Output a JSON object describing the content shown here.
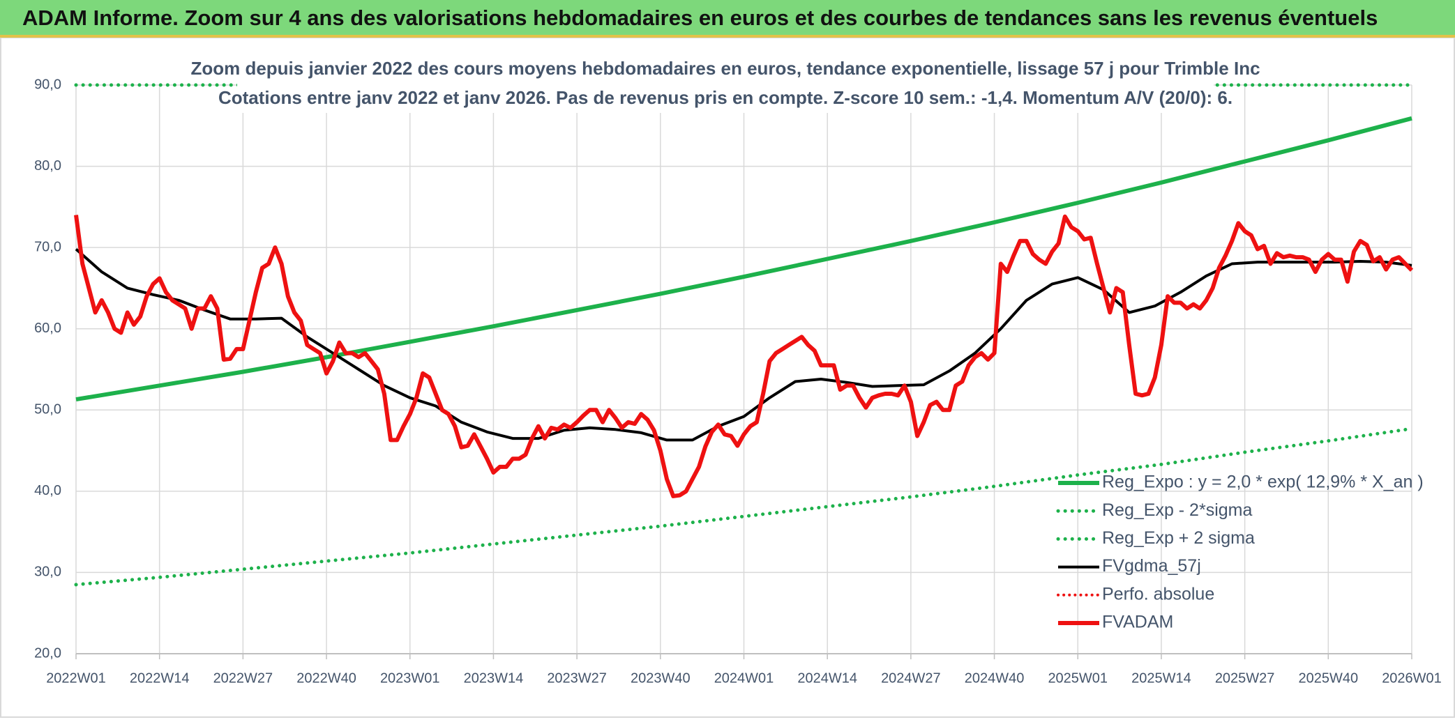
{
  "header": {
    "title": "ADAM Informe. Zoom sur 4 ans des valorisations hebdomadaires en euros et des courbes de tendances sans les revenus éventuels"
  },
  "chart_data": {
    "type": "line",
    "title": [
      "Zoom depuis janvier 2022 des cours moyens hebdomadaires en euros, tendance exponentielle, lissage 57 j pour Trimble Inc",
      "Cotations entre janv 2022 et janv 2026. Pas de revenus pris en compte. Z-score 10 sem.: -1,4. Momentum A/V (20/0): 6."
    ],
    "xlim": [
      0,
      208
    ],
    "xticks": [
      {
        "value": 0,
        "label": "2022W01"
      },
      {
        "value": 13,
        "label": "2022W14"
      },
      {
        "value": 26,
        "label": "2022W27"
      },
      {
        "value": 39,
        "label": "2022W40"
      },
      {
        "value": 52,
        "label": "2023W01"
      },
      {
        "value": 65,
        "label": "2023W14"
      },
      {
        "value": 78,
        "label": "2023W27"
      },
      {
        "value": 91,
        "label": "2023W40"
      },
      {
        "value": 104,
        "label": "2024W01"
      },
      {
        "value": 117,
        "label": "2024W14"
      },
      {
        "value": 130,
        "label": "2024W27"
      },
      {
        "value": 143,
        "label": "2024W40"
      },
      {
        "value": 156,
        "label": "2025W01"
      },
      {
        "value": 169,
        "label": "2025W14"
      },
      {
        "value": 182,
        "label": "2025W27"
      },
      {
        "value": 195,
        "label": "2025W40"
      },
      {
        "value": 208,
        "label": "2026W01"
      }
    ],
    "ylim": [
      20,
      90
    ],
    "yticks": [
      {
        "value": 20,
        "label": "20,0"
      },
      {
        "value": 30,
        "label": "30,0"
      },
      {
        "value": 40,
        "label": "40,0"
      },
      {
        "value": 50,
        "label": "50,0"
      },
      {
        "value": 60,
        "label": "60,0"
      },
      {
        "value": 70,
        "label": "70,0"
      },
      {
        "value": 80,
        "label": "80,0"
      },
      {
        "value": 90,
        "label": "90,0"
      }
    ],
    "grid": true,
    "series": [
      {
        "name": "Reg_Expo : y = 2,0 * exp( 12,9% *  X_an )",
        "color": "#1db14b",
        "width": 6,
        "dashed": false,
        "x": [
          0,
          13,
          26,
          39,
          52,
          65,
          78,
          91,
          104,
          117,
          130,
          143,
          156,
          169,
          182,
          195,
          208
        ],
        "values": [
          51.3,
          53.0,
          54.7,
          56.5,
          58.4,
          60.3,
          62.3,
          64.3,
          66.4,
          68.6,
          70.8,
          73.1,
          75.5,
          78.0,
          80.6,
          83.2,
          85.9
        ]
      },
      {
        "name": "Reg_Exp - 2*sigma",
        "color": "#1db14b",
        "width": 5,
        "dashed": true,
        "x": [
          0,
          13,
          26,
          39,
          52,
          65,
          78,
          91,
          104,
          117,
          130,
          143,
          156,
          169,
          182,
          195,
          208
        ],
        "values": [
          28.5,
          29.4,
          30.4,
          31.4,
          32.4,
          33.5,
          34.6,
          35.7,
          36.9,
          38.1,
          39.3,
          40.6,
          42.0,
          43.3,
          44.8,
          46.2,
          47.7
        ]
      },
      {
        "name": "Reg_Exp + 2 sigma",
        "color": "#1db14b",
        "width": 5,
        "dashed": true,
        "x": [
          0,
          208
        ],
        "values": [
          90,
          90
        ]
      },
      {
        "name": "FVgdma_57j",
        "color": "#000000",
        "width": 4,
        "dashed": false,
        "x": [
          0,
          4,
          8,
          12,
          16,
          20,
          24,
          28,
          32,
          36,
          40,
          44,
          48,
          52,
          56,
          60,
          64,
          68,
          72,
          76,
          80,
          84,
          88,
          92,
          96,
          100,
          104,
          108,
          112,
          116,
          120,
          124,
          128,
          132,
          136,
          140,
          144,
          148,
          152,
          156,
          160,
          164,
          168,
          172,
          176,
          180,
          184,
          188,
          192,
          196,
          200,
          204,
          208
        ],
        "values": [
          69.8,
          67,
          65,
          64.2,
          63.5,
          62.3,
          61.2,
          61.2,
          61.3,
          59,
          57,
          55,
          53,
          51.5,
          50.5,
          48.5,
          47.3,
          46.5,
          46.5,
          47.5,
          47.8,
          47.6,
          47.2,
          46.3,
          46.3,
          48,
          49.2,
          51.5,
          53.5,
          53.8,
          53.4,
          52.9,
          53,
          53.1,
          54.8,
          57,
          60,
          63.5,
          65.5,
          66.3,
          64.8,
          62,
          62.8,
          64.5,
          66.5,
          68,
          68.2,
          68.2,
          68.2,
          68.2,
          68.3,
          68.2,
          67.8
        ]
      },
      {
        "name": "Perfo. absolue",
        "color": "#ee1111",
        "width": 4,
        "dashed": true
      },
      {
        "name": "FVADAM",
        "color": "#ee1111",
        "width": 6,
        "dashed": false,
        "x": [
          0,
          1,
          2,
          3,
          4,
          5,
          6,
          7,
          8,
          9,
          10,
          11,
          12,
          13,
          14,
          15,
          16,
          17,
          18,
          19,
          20,
          21,
          22,
          23,
          24,
          25,
          26,
          27,
          28,
          29,
          30,
          31,
          32,
          33,
          34,
          35,
          36,
          37,
          38,
          39,
          40,
          41,
          42,
          43,
          44,
          45,
          46,
          47,
          48,
          49,
          50,
          51,
          52,
          53,
          54,
          55,
          56,
          57,
          58,
          59,
          60,
          61,
          62,
          63,
          64,
          65,
          66,
          67,
          68,
          69,
          70,
          71,
          72,
          73,
          74,
          75,
          76,
          77,
          78,
          79,
          80,
          81,
          82,
          83,
          84,
          85,
          86,
          87,
          88,
          89,
          90,
          91,
          92,
          93,
          94,
          95,
          96,
          97,
          98,
          99,
          100,
          101,
          102,
          103,
          104,
          105,
          106,
          107,
          108,
          109,
          110,
          111,
          112,
          113,
          114,
          115,
          116,
          117,
          118,
          119,
          120,
          121,
          122,
          123,
          124,
          125,
          126,
          127,
          128,
          129,
          130,
          131,
          132,
          133,
          134,
          135,
          136,
          137,
          138,
          139,
          140,
          141,
          142,
          143,
          144,
          145,
          146,
          147,
          148,
          149,
          150,
          151,
          152,
          153,
          154,
          155,
          156,
          157,
          158,
          159,
          160,
          161,
          162,
          163,
          164,
          165,
          166,
          167,
          168,
          169,
          170,
          171,
          172,
          173,
          174,
          175,
          176,
          177,
          178,
          179,
          180,
          181,
          182,
          183,
          184,
          185,
          186,
          187,
          188,
          189,
          190,
          191,
          192,
          193,
          194,
          195,
          196,
          197,
          198,
          199,
          200,
          201,
          202,
          203,
          204,
          205,
          206,
          207,
          208
        ],
        "values": [
          74,
          68,
          65,
          62,
          63.5,
          62,
          60,
          59.5,
          62,
          60.5,
          61.5,
          64,
          65.5,
          66.2,
          64.5,
          63.5,
          63,
          62.5,
          60,
          62.5,
          62.5,
          64,
          62.5,
          56.2,
          56.3,
          57.5,
          57.5,
          61,
          64.5,
          67.5,
          68,
          70,
          68,
          64,
          62,
          61,
          58,
          57.5,
          57,
          54.5,
          56,
          58.3,
          57,
          57,
          56.5,
          57,
          56,
          55,
          52,
          46.3,
          46.3,
          48,
          49.5,
          51.5,
          54.5,
          54,
          52,
          50,
          49.5,
          48,
          45.4,
          45.6,
          47,
          45.5,
          44,
          42.3,
          43,
          43,
          44,
          44,
          44.5,
          46.5,
          48,
          46.5,
          47.8,
          47.6,
          48.2,
          47.8,
          48.5,
          49.3,
          50,
          50,
          48.5,
          50,
          49,
          47.8,
          48.5,
          48.3,
          49.5,
          48.8,
          47.5,
          45,
          41.5,
          39.4,
          39.5,
          40,
          41.5,
          43,
          45.5,
          47.3,
          48.2,
          47,
          46.8,
          45.6,
          47,
          48,
          48.5,
          52,
          56,
          57,
          57.5,
          58,
          58.5,
          59,
          58,
          57.3,
          55.5,
          55.5,
          55.5,
          52.5,
          53,
          53,
          51.5,
          50.3,
          51.5,
          51.8,
          52,
          52,
          51.8,
          53,
          51,
          46.8,
          48.5,
          50.6,
          51,
          50,
          50,
          53,
          53.5,
          55.5,
          56.5,
          57,
          56.2,
          57,
          68,
          67,
          69,
          70.8,
          70.8,
          69.2,
          68.5,
          68,
          69.5,
          70.5,
          73.8,
          72.5,
          72,
          71,
          71.2,
          68,
          65,
          62,
          65,
          64.5,
          58,
          52,
          51.8,
          52,
          54,
          58,
          64,
          63.2,
          63.2,
          62.5,
          63,
          62.5,
          63.5,
          65,
          67.5,
          69,
          70.8,
          73,
          72,
          71.5,
          69.8,
          70.2,
          68,
          69.3,
          68.8,
          69,
          68.8,
          68.8,
          68.5,
          67,
          68.5,
          69.2,
          68.5,
          68.5,
          65.8,
          69.5,
          70.8,
          70.3,
          68.3,
          68.8,
          67.3,
          68.5,
          68.8,
          68,
          67.2
        ]
      }
    ]
  }
}
